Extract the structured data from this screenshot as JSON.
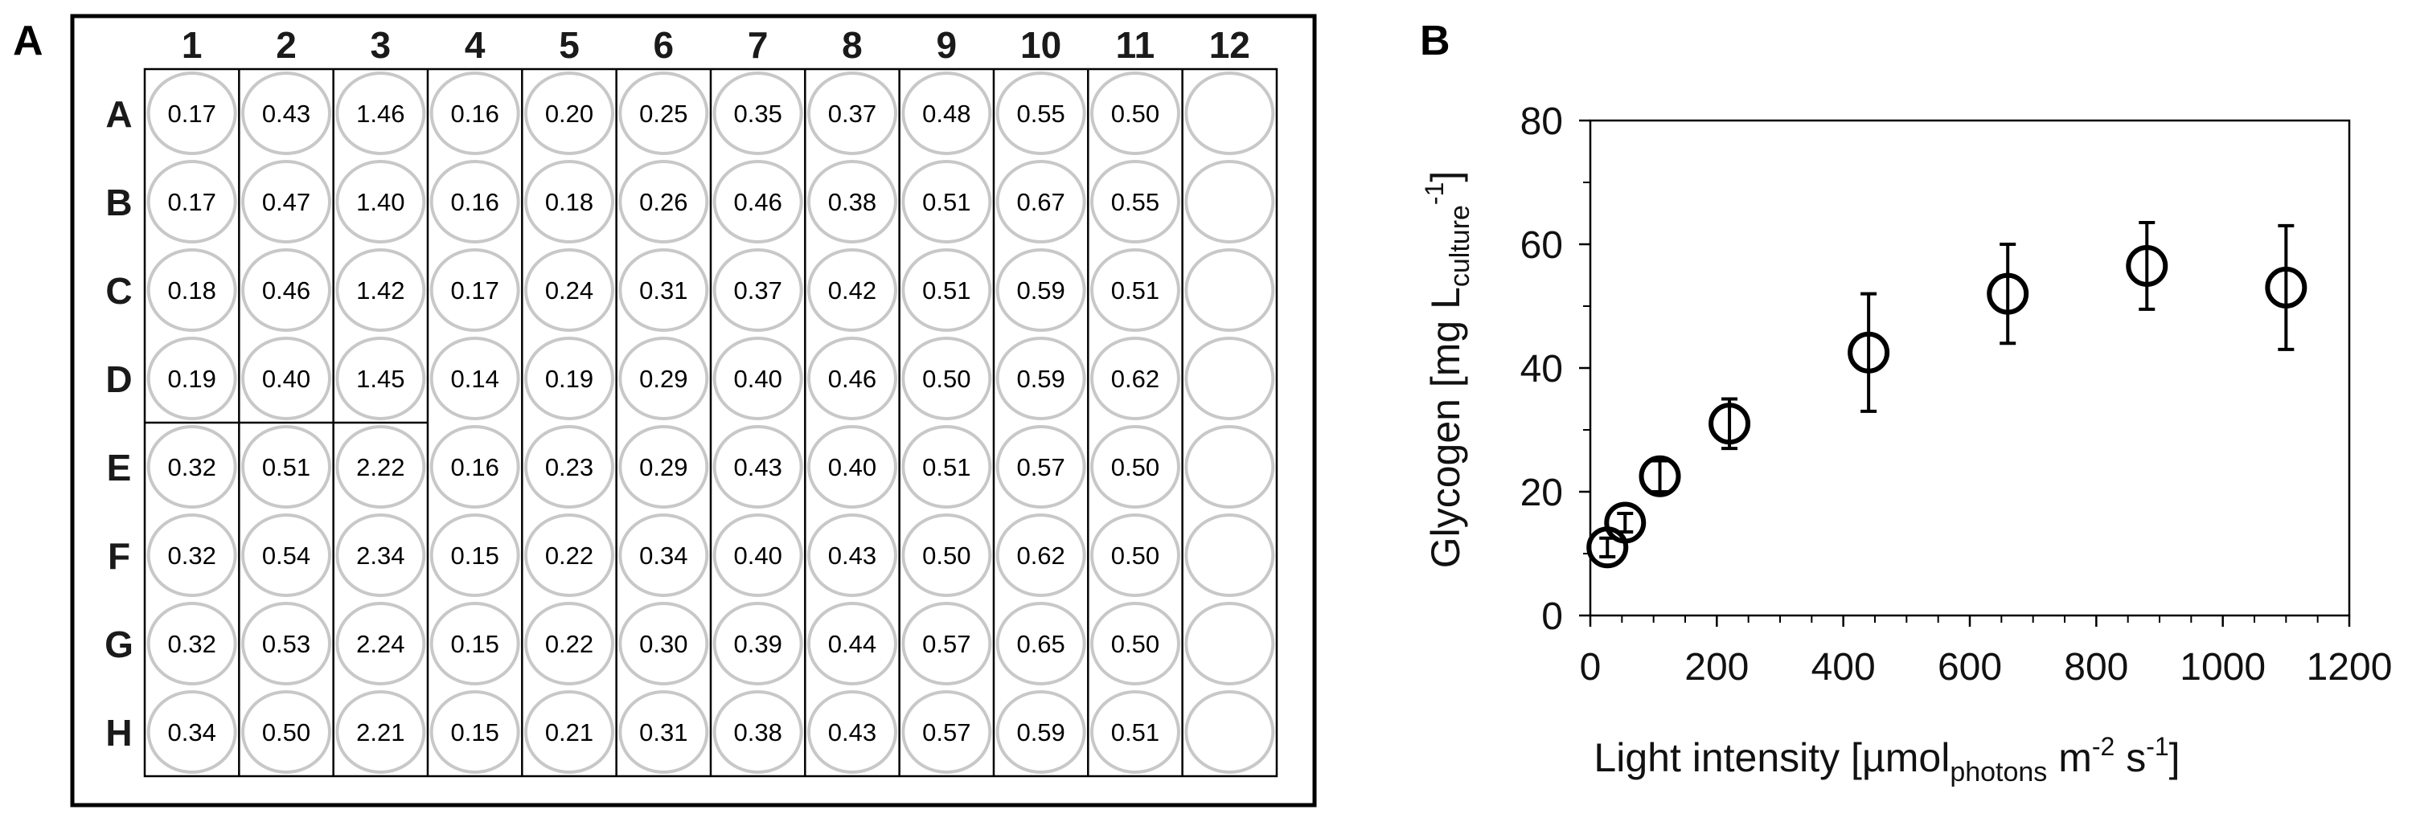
{
  "panels": {
    "left": "A",
    "right": "B"
  },
  "plate": {
    "columns": [
      "1",
      "2",
      "3",
      "4",
      "5",
      "6",
      "7",
      "8",
      "9",
      "10",
      "11",
      "12"
    ],
    "rows": [
      "A",
      "B",
      "C",
      "D",
      "E",
      "F",
      "G",
      "H"
    ],
    "values": [
      [
        "0.17",
        "0.43",
        "1.46",
        "0.16",
        "0.20",
        "0.25",
        "0.35",
        "0.37",
        "0.48",
        "0.55",
        "0.50",
        ""
      ],
      [
        "0.17",
        "0.47",
        "1.40",
        "0.16",
        "0.18",
        "0.26",
        "0.46",
        "0.38",
        "0.51",
        "0.67",
        "0.55",
        ""
      ],
      [
        "0.18",
        "0.46",
        "1.42",
        "0.17",
        "0.24",
        "0.31",
        "0.37",
        "0.42",
        "0.51",
        "0.59",
        "0.51",
        ""
      ],
      [
        "0.19",
        "0.40",
        "1.45",
        "0.14",
        "0.19",
        "0.29",
        "0.40",
        "0.46",
        "0.50",
        "0.59",
        "0.62",
        ""
      ],
      [
        "0.32",
        "0.51",
        "2.22",
        "0.16",
        "0.23",
        "0.29",
        "0.43",
        "0.40",
        "0.51",
        "0.57",
        "0.50",
        ""
      ],
      [
        "0.32",
        "0.54",
        "2.34",
        "0.15",
        "0.22",
        "0.34",
        "0.40",
        "0.43",
        "0.50",
        "0.62",
        "0.50",
        ""
      ],
      [
        "0.32",
        "0.53",
        "2.24",
        "0.15",
        "0.22",
        "0.30",
        "0.39",
        "0.44",
        "0.57",
        "0.65",
        "0.50",
        ""
      ],
      [
        "0.34",
        "0.50",
        "2.21",
        "0.15",
        "0.21",
        "0.31",
        "0.38",
        "0.43",
        "0.57",
        "0.59",
        "0.51",
        ""
      ]
    ]
  },
  "chart_data": {
    "type": "scatter",
    "title": "",
    "xlabel": {
      "main": "Light intensity [µmol",
      "sub": "photons",
      "unit1": " m",
      "sup1": "-2",
      "unit2": " s",
      "sup2": "-1",
      "end": "]"
    },
    "ylabel": {
      "main": "Glycogen [mg L",
      "sub": "culture",
      "sup": "-1",
      "end": "]"
    },
    "xlim": [
      0,
      1200
    ],
    "ylim": [
      0,
      80
    ],
    "xticks": [
      0,
      200,
      400,
      600,
      800,
      1000,
      1200
    ],
    "yticks": [
      0,
      20,
      40,
      60,
      80
    ],
    "grid": false,
    "marker": "open-circle",
    "error_bars": true,
    "points": [
      {
        "x": 27,
        "y": 11.0,
        "yerr": 1.5
      },
      {
        "x": 55,
        "y": 15.0,
        "yerr": 1.5
      },
      {
        "x": 110,
        "y": 22.5,
        "yerr": 2.5
      },
      {
        "x": 220,
        "y": 31.0,
        "yerr": 4.0
      },
      {
        "x": 440,
        "y": 42.5,
        "yerr": 9.5
      },
      {
        "x": 660,
        "y": 52.0,
        "yerr": 8.0
      },
      {
        "x": 880,
        "y": 56.5,
        "yerr": 7.0
      },
      {
        "x": 1100,
        "y": 53.0,
        "yerr": 10.0
      }
    ]
  }
}
